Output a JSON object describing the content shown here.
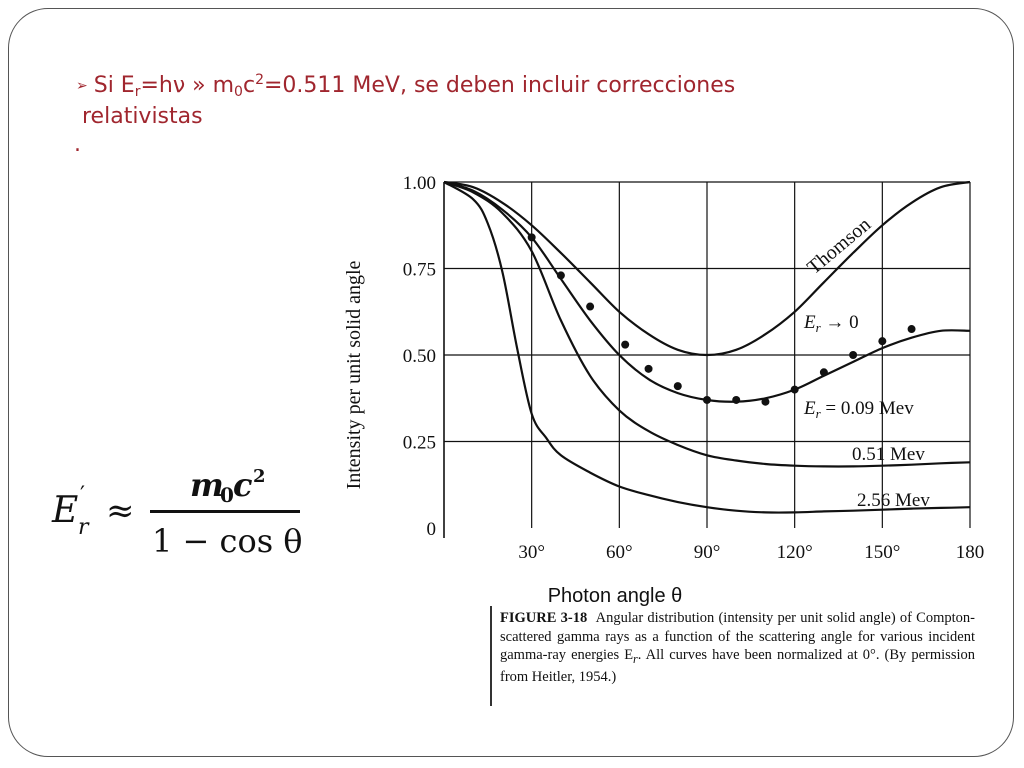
{
  "slide": {
    "bullet": {
      "arrow": "➢",
      "part_si": "Si E",
      "sub_r": "r",
      "part_eq": "=hν » m",
      "sub_0": "0",
      "part_c": "c",
      "sup_2": "2",
      "part_rest": "=0.511 MeV, se deben incluir correcciones",
      "line2": "relativistas",
      "dot": "."
    },
    "formula": {
      "lhs_E": "E",
      "lhs_prime": "′",
      "lhs_r": "r",
      "approx": "≈",
      "num_m": "m",
      "num_0": "0",
      "num_c": "c",
      "num_2": "2",
      "den": "1 − cos θ"
    },
    "caption": {
      "label": "FIGURE 3-18",
      "text": "Angular distribution (intensity per unit solid angle) of Compton-scattered gamma rays as a function of the scattering angle for various incident gamma-ray energies E",
      "sub": "r",
      "text2": ". All curves have been normalized at 0°. (By permission from Heitler, 1954.)"
    },
    "colors": {
      "accent": "#a0262e",
      "text": "#111111"
    }
  },
  "chart_data": {
    "type": "line",
    "title": "",
    "xlabel": "Photon angle θ",
    "ylabel": "Intensity per unit solid angle",
    "xlim": [
      0,
      180
    ],
    "ylim": [
      0,
      1.0
    ],
    "x_ticks": [
      30,
      60,
      90,
      120,
      150,
      180
    ],
    "x_tick_labels": [
      "30°",
      "60°",
      "90°",
      "120°",
      "150°",
      "180"
    ],
    "y_ticks": [
      0,
      0.25,
      0.5,
      0.75,
      1.0
    ],
    "y_tick_labels": [
      "0",
      "0.25",
      "0.50",
      "0.75",
      "1.00"
    ],
    "grid": true,
    "series": [
      {
        "name": "Thomson",
        "label": "Thomson",
        "x": [
          0,
          10,
          20,
          30,
          40,
          50,
          60,
          70,
          80,
          90,
          100,
          110,
          120,
          130,
          140,
          150,
          160,
          170,
          180
        ],
        "y": [
          1.0,
          0.985,
          0.94,
          0.875,
          0.795,
          0.71,
          0.625,
          0.56,
          0.515,
          0.5,
          0.515,
          0.56,
          0.625,
          0.71,
          0.795,
          0.875,
          0.94,
          0.985,
          1.0
        ]
      },
      {
        "name": "E_r → 0",
        "label_main": "E",
        "label_sub": "r",
        "label_rest": " → 0",
        "x": [
          0,
          10,
          20,
          30,
          40,
          50,
          60,
          70,
          80,
          90,
          100,
          110,
          120,
          130,
          140,
          150,
          160,
          170,
          180
        ],
        "y": [
          1.0,
          0.985,
          0.94,
          0.875,
          0.795,
          0.71,
          0.625,
          0.56,
          0.515,
          0.5,
          0.515,
          0.56,
          0.625,
          0.71,
          0.795,
          0.875,
          0.94,
          0.985,
          1.0
        ],
        "visible_as_separate": false
      },
      {
        "name": "E_r = 0.09 Mev",
        "label_main": "E",
        "label_sub": "r",
        "label_rest": " = 0.09 Mev",
        "x": [
          0,
          10,
          20,
          30,
          40,
          50,
          60,
          70,
          80,
          90,
          100,
          110,
          120,
          130,
          140,
          150,
          160,
          170,
          180
        ],
        "y": [
          1.0,
          0.975,
          0.92,
          0.84,
          0.72,
          0.6,
          0.5,
          0.43,
          0.39,
          0.37,
          0.365,
          0.375,
          0.4,
          0.44,
          0.48,
          0.52,
          0.55,
          0.57,
          0.57
        ]
      },
      {
        "name": "0.51 Mev",
        "label": "0.51 Mev",
        "x": [
          0,
          10,
          20,
          30,
          40,
          50,
          60,
          70,
          80,
          90,
          100,
          110,
          120,
          130,
          140,
          150,
          160,
          170,
          180
        ],
        "y": [
          1.0,
          0.97,
          0.91,
          0.8,
          0.6,
          0.44,
          0.34,
          0.28,
          0.24,
          0.21,
          0.195,
          0.185,
          0.18,
          0.178,
          0.178,
          0.18,
          0.183,
          0.187,
          0.19
        ]
      },
      {
        "name": "2.56 Mev",
        "label": "2.56 Mev",
        "x": [
          0,
          10,
          15,
          20,
          25,
          30,
          35,
          40,
          50,
          60,
          70,
          80,
          90,
          100,
          110,
          120,
          130,
          140,
          150,
          160,
          170,
          180
        ],
        "y": [
          1.0,
          0.95,
          0.88,
          0.74,
          0.52,
          0.33,
          0.26,
          0.21,
          0.16,
          0.12,
          0.095,
          0.075,
          0.06,
          0.05,
          0.045,
          0.045,
          0.048,
          0.05,
          0.053,
          0.056,
          0.058,
          0.06
        ]
      }
    ],
    "data_points": {
      "name": "experimental",
      "x": [
        30,
        40,
        50,
        62,
        70,
        80,
        90,
        100,
        110,
        120,
        130,
        140,
        150,
        160
      ],
      "y": [
        0.84,
        0.73,
        0.64,
        0.53,
        0.46,
        0.41,
        0.37,
        0.37,
        0.365,
        0.4,
        0.45,
        0.5,
        0.54,
        0.575
      ]
    }
  }
}
